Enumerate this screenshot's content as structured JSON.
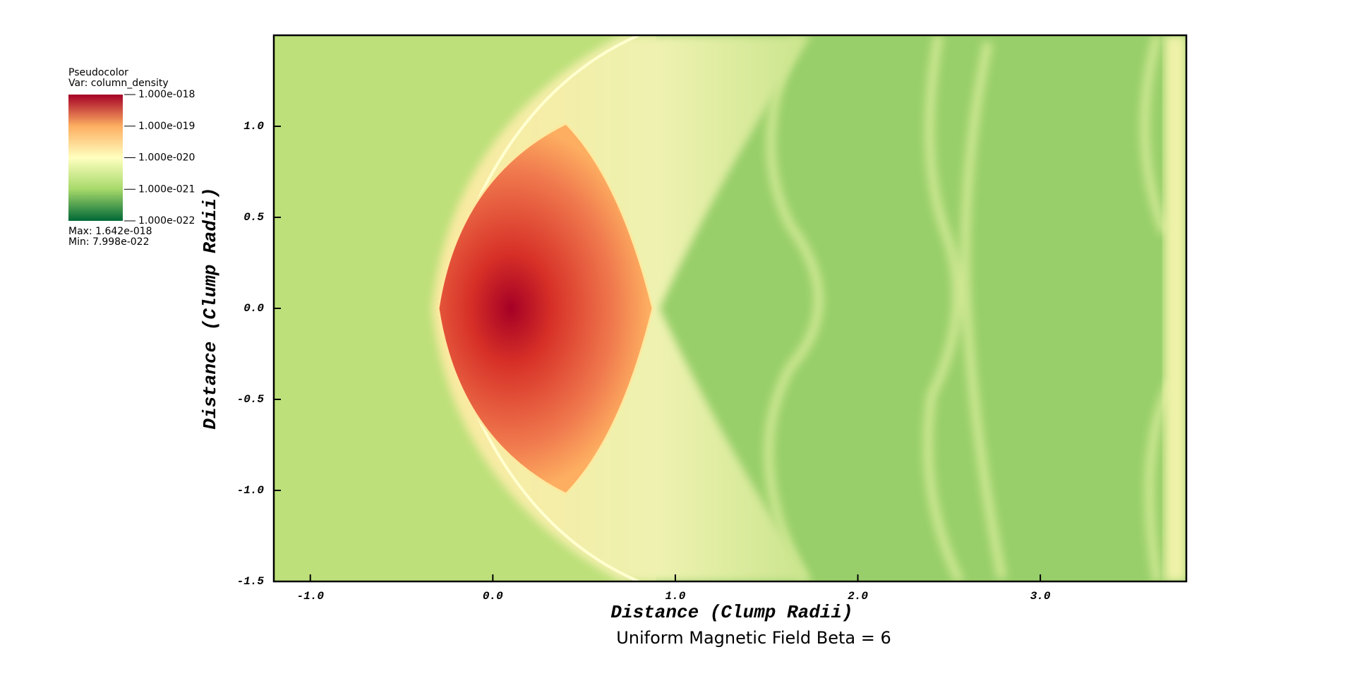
{
  "chart_data": {
    "type": "pseudocolor",
    "title": "Uniform Magnetic Field Beta = 6",
    "x_label": "Distance (Clump Radii)",
    "y_label": "Distance (Clump Radii)",
    "xlim": [
      -1.2,
      3.8
    ],
    "ylim": [
      -1.5,
      1.5
    ],
    "xticks": [
      {
        "value": -1,
        "label": "-1.0"
      },
      {
        "value": 0,
        "label": "0.0"
      },
      {
        "value": 1,
        "label": "1.0"
      },
      {
        "value": 2,
        "label": "2.0"
      },
      {
        "value": 3,
        "label": "3.0"
      }
    ],
    "yticks": [
      {
        "value": -1.5,
        "label": "-1.5"
      },
      {
        "value": -1,
        "label": "-1.0"
      },
      -0.5,
      {
        "value": 0,
        "label": "0.0"
      },
      0.5,
      {
        "value": 1,
        "label": "1.0"
      }
    ],
    "legend": {
      "plot": "Pseudocolor",
      "variable": "Var: column_density",
      "log_scale": true,
      "colors": [
        "#006837",
        "#a6d96a",
        "#ffffbf",
        "#fdae61",
        "#a50026"
      ],
      "ticks": [
        {
          "value": 1e-18,
          "label": "1.000e-018"
        },
        {
          "value": 1e-19,
          "label": "1.000e-019"
        },
        {
          "value": 1e-20,
          "label": "1.000e-020"
        },
        {
          "value": 1e-21,
          "label": "1.000e-021"
        },
        {
          "value": 1e-22,
          "label": "1.000e-022"
        }
      ],
      "max": {
        "value": 1.642e-18,
        "label": "Max:  1.642e-018"
      },
      "min": {
        "value": 7.998e-22,
        "label": "Min:  7.998e-022"
      }
    }
  }
}
